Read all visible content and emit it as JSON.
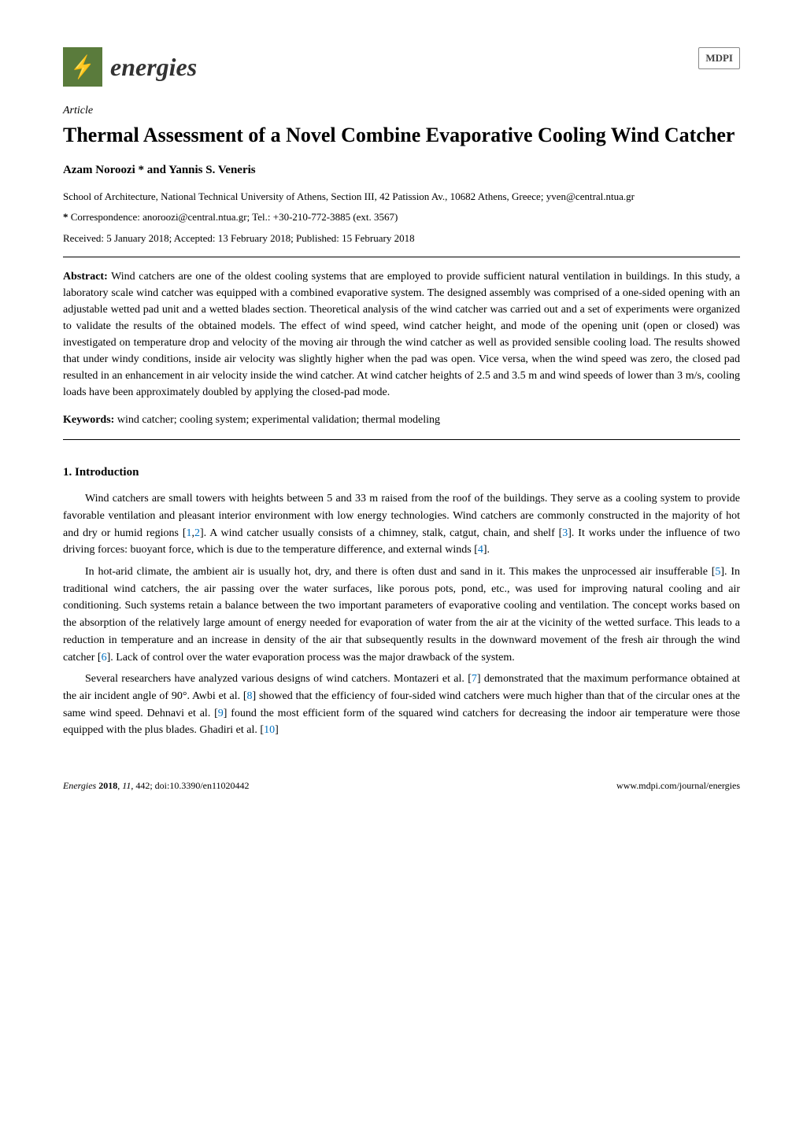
{
  "journal": {
    "name": "energies",
    "publisher_logo": "MDPI",
    "logo_bg_color": "#5a7b3c"
  },
  "article_type": "Article",
  "title": "Thermal Assessment of a Novel Combine Evaporative Cooling Wind Catcher",
  "authors": "Azam Noroozi * and Yannis S. Veneris",
  "affiliation": "School of Architecture, National Technical University of Athens, Section III, 42 Patission Av., 10682 Athens, Greece; yven@central.ntua.gr",
  "correspondence_label": "*",
  "correspondence": "Correspondence: anoroozi@central.ntua.gr; Tel.: +30-210-772-3885 (ext. 3567)",
  "dates": "Received: 5 January 2018; Accepted: 13 February 2018; Published: 15 February 2018",
  "abstract_label": "Abstract:",
  "abstract": "Wind catchers are one of the oldest cooling systems that are employed to provide sufficient natural ventilation in buildings. In this study, a laboratory scale wind catcher was equipped with a combined evaporative system. The designed assembly was comprised of a one-sided opening with an adjustable wetted pad unit and a wetted blades section. Theoretical analysis of the wind catcher was carried out and a set of experiments were organized to validate the results of the obtained models. The effect of wind speed, wind catcher height, and mode of the opening unit (open or closed) was investigated on temperature drop and velocity of the moving air through the wind catcher as well as provided sensible cooling load. The results showed that under windy conditions, inside air velocity was slightly higher when the pad was open. Vice versa, when the wind speed was zero, the closed pad resulted in an enhancement in air velocity inside the wind catcher. At wind catcher heights of 2.5 and 3.5 m and wind speeds of lower than 3 m/s, cooling loads have been approximately doubled by applying the closed-pad mode.",
  "keywords_label": "Keywords:",
  "keywords": "wind catcher; cooling system; experimental validation; thermal modeling",
  "section1": {
    "heading": "1. Introduction",
    "paragraphs": [
      {
        "pre": "Wind catchers are small towers with heights between 5 and 33 m raised from the roof of the buildings. They serve as a cooling system to provide favorable ventilation and pleasant interior environment with low energy technologies. Wind catchers are commonly constructed in the majority of hot and dry or humid regions [",
        "c1": "1",
        "mid1": ",",
        "c2": "2",
        "post1": "]. A wind catcher usually consists of a chimney, stalk, catgut, chain, and shelf [",
        "c3": "3",
        "post2": "]. It works under the influence of two driving forces: buoyant force, which is due to the temperature difference, and external winds [",
        "c4": "4",
        "post3": "]."
      },
      {
        "pre": "In hot-arid climate, the ambient air is usually hot, dry, and there is often dust and sand in it. This makes the unprocessed air insufferable [",
        "c1": "5",
        "post1": "]. In traditional wind catchers, the air passing over the water surfaces, like porous pots, pond, etc., was used for improving natural cooling and air conditioning. Such systems retain a balance between the two important parameters of evaporative cooling and ventilation. The concept works based on the absorption of the relatively large amount of energy needed for evaporation of water from the air at the vicinity of the wetted surface. This leads to a reduction in temperature and an increase in density of the air that subsequently results in the downward movement of the fresh air through the wind catcher [",
        "c2": "6",
        "post2": "]. Lack of control over the water evaporation process was the major drawback of the system."
      },
      {
        "pre": "Several researchers have analyzed various designs of wind catchers. Montazeri et al. [",
        "c1": "7",
        "post1": "] demonstrated that the maximum performance obtained at the air incident angle of 90°. Awbi et al. [",
        "c2": "8",
        "post2": "] showed that the efficiency of four-sided wind catchers were much higher than that of the circular ones at the same wind speed. Dehnavi et al. [",
        "c3": "9",
        "post3": "] found the most efficient form of the squared wind catchers for decreasing the indoor air temperature were those equipped with the plus blades. Ghadiri et al. [",
        "c4": "10",
        "post4": "]"
      }
    ]
  },
  "footer": {
    "left_journal": "Energies",
    "left_year": "2018",
    "left_vol": "11",
    "left_art": "442",
    "left_doi": "doi:10.3390/en11020442",
    "right": "www.mdpi.com/journal/energies"
  },
  "colors": {
    "cite_color": "#0070c0",
    "text_color": "#000000",
    "bg_color": "#ffffff"
  }
}
